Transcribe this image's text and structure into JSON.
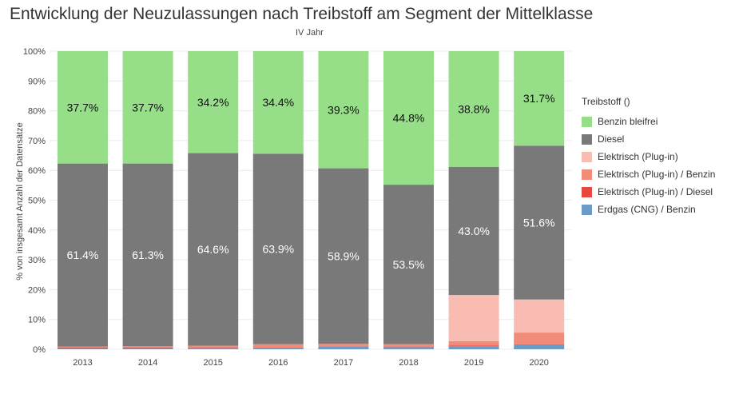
{
  "chart_data": {
    "type": "bar",
    "stacked": true,
    "title": "Entwicklung der Neuzulassungen nach Treibstoff am Segment der Mittelklasse",
    "subtitle": "IV Jahr",
    "xlabel": "",
    "ylabel": "% von insgesamt Anzahl der Datensätze",
    "ylim": [
      0,
      100
    ],
    "ytick_labels": [
      "0%",
      "10%",
      "20%",
      "30%",
      "40%",
      "50%",
      "60%",
      "70%",
      "80%",
      "90%",
      "100%"
    ],
    "grid": true,
    "legend_position": "right",
    "legend_title": "Treibstoff ()",
    "categories": [
      "2013",
      "2014",
      "2015",
      "2016",
      "2017",
      "2018",
      "2019",
      "2020"
    ],
    "series": [
      {
        "name": "Erdgas (CNG) / Benzin",
        "color": "#6c9bc7",
        "values": [
          0.2,
          0.2,
          0.2,
          0.3,
          0.8,
          0.7,
          1.0,
          1.6
        ]
      },
      {
        "name": "Elektrisch (Plug-in) / Diesel",
        "color": "#e8473f",
        "values": [
          0.4,
          0.4,
          0.3,
          0.2,
          0.1,
          0.1,
          0.2,
          0.1
        ]
      },
      {
        "name": "Elektrisch (Plug-in) / Benzin",
        "color": "#f28b78",
        "values": [
          0.3,
          0.4,
          0.7,
          1.2,
          0.9,
          0.9,
          1.5,
          3.9
        ]
      },
      {
        "name": "Elektrisch (Plug-in)",
        "color": "#f8bcb3",
        "values": [
          0.0,
          0.0,
          0.0,
          0.0,
          0.0,
          0.0,
          15.5,
          11.1
        ]
      },
      {
        "name": "Diesel",
        "color": "#797979",
        "values": [
          61.4,
          61.3,
          64.6,
          63.9,
          58.9,
          53.5,
          43.0,
          51.6
        ]
      },
      {
        "name": "Benzin bleifrei",
        "color": "#97de89",
        "values": [
          37.7,
          37.7,
          34.2,
          34.4,
          39.3,
          44.8,
          38.8,
          31.7
        ]
      }
    ],
    "data_labels": {
      "Diesel": [
        "61.4%",
        "61.3%",
        "64.6%",
        "63.9%",
        "58.9%",
        "53.5%",
        "43.0%",
        "51.6%"
      ],
      "Benzin bleifrei": [
        "37.7%",
        "37.7%",
        "34.2%",
        "34.4%",
        "39.3%",
        "44.8%",
        "38.8%",
        "31.7%"
      ]
    },
    "legend_order": [
      "Benzin bleifrei",
      "Diesel",
      "Elektrisch (Plug-in)",
      "Elektrisch (Plug-in) / Benzin",
      "Elektrisch (Plug-in) / Diesel",
      "Erdgas (CNG) / Benzin"
    ]
  }
}
